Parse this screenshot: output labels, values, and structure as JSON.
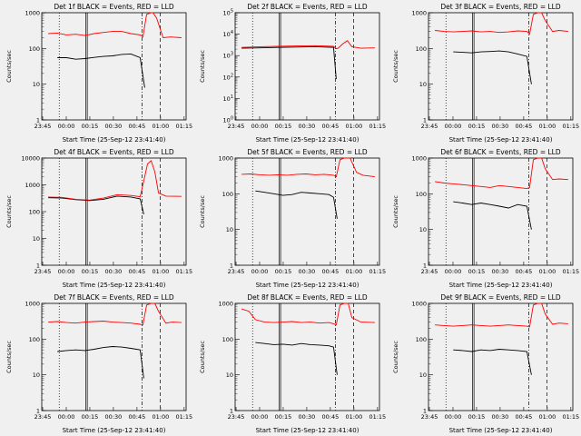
{
  "xlabel": "Start Time (25-Sep-12 23:41:40)",
  "ylabel": "Counts/sec",
  "colors": {
    "events": "#000000",
    "lld": "#ff0000",
    "axes": "#000000",
    "background": "#f0f0f0"
  },
  "chart_data": [
    {
      "type": "line",
      "title": "Det 1f BLACK = Events, RED = LLD",
      "xticks": [
        "23:45",
        "00:00",
        "00:15",
        "00:30",
        "00:45",
        "01:00",
        "01:15"
      ],
      "yscale": "log",
      "ylim": [
        1,
        1000
      ],
      "yticks": [
        "1",
        "10",
        "100",
        "1000"
      ],
      "series": [
        {
          "name": "Events",
          "color": "#000000",
          "x": [
            0.1,
            0.2,
            0.3,
            0.4,
            0.5,
            0.6,
            0.7,
            0.8,
            0.9,
            1.0,
            1.05,
            1.13
          ],
          "y": [
            55,
            55,
            50,
            52,
            56,
            60,
            62,
            68,
            70,
            55,
            8,
            null
          ]
        },
        {
          "name": "LLD",
          "color": "#ff0000",
          "x": [
            0.0,
            0.1,
            0.2,
            0.3,
            0.4,
            0.5,
            0.6,
            0.7,
            0.8,
            0.9,
            1.0,
            1.03,
            1.07,
            1.12,
            1.14,
            1.18,
            1.25,
            1.33,
            1.45
          ],
          "y": [
            260,
            270,
            240,
            250,
            230,
            260,
            280,
            300,
            300,
            260,
            240,
            210,
            900,
            1000,
            1000,
            700,
            200,
            210,
            200
          ]
        }
      ]
    },
    {
      "type": "line",
      "title": "Det 2f BLACK = Events, RED = LLD",
      "xticks": [
        "23:45",
        "00:00",
        "00:15",
        "00:30",
        "00:45",
        "01:00",
        "01:15"
      ],
      "yscale": "log",
      "ylim": [
        1,
        100000
      ],
      "yticks": [
        "10^0",
        "10^1",
        "10^2",
        "10^3",
        "10^4",
        "10^5"
      ],
      "series": [
        {
          "name": "Events",
          "color": "#000000",
          "x": [
            0.0,
            0.2,
            0.4,
            0.6,
            0.8,
            1.0,
            1.03
          ],
          "y": [
            2200,
            2300,
            2400,
            2500,
            2600,
            2400,
            80
          ]
        },
        {
          "name": "LLD",
          "color": "#ff0000",
          "x": [
            0.0,
            0.2,
            0.4,
            0.6,
            0.8,
            1.0,
            1.03,
            1.05,
            1.1,
            1.15,
            1.2,
            1.3,
            1.45
          ],
          "y": [
            2400,
            2600,
            2700,
            2800,
            2900,
            2700,
            2100,
            2200,
            3500,
            5000,
            2600,
            2200,
            2300
          ]
        }
      ]
    },
    {
      "type": "line",
      "title": "Det 3f BLACK = Events, RED = LLD",
      "xticks": [
        "23:45",
        "00:00",
        "00:15",
        "00:30",
        "00:45",
        "01:00",
        "01:15"
      ],
      "yscale": "log",
      "ylim": [
        1,
        1000
      ],
      "yticks": [
        "1",
        "10",
        "100",
        "1000"
      ],
      "series": [
        {
          "name": "Events",
          "color": "#000000",
          "x": [
            0.2,
            0.3,
            0.4,
            0.5,
            0.6,
            0.7,
            0.8,
            0.9,
            1.0,
            1.05
          ],
          "y": [
            80,
            78,
            75,
            80,
            82,
            85,
            80,
            70,
            60,
            10
          ]
        },
        {
          "name": "LLD",
          "color": "#ff0000",
          "x": [
            0.0,
            0.1,
            0.2,
            0.3,
            0.4,
            0.5,
            0.6,
            0.7,
            0.8,
            0.9,
            1.0,
            1.03,
            1.07,
            1.12,
            1.16,
            1.2,
            1.28,
            1.35,
            1.45
          ],
          "y": [
            320,
            300,
            290,
            300,
            310,
            290,
            300,
            280,
            290,
            310,
            300,
            250,
            900,
            1000,
            1000,
            600,
            300,
            320,
            300
          ]
        }
      ]
    },
    {
      "type": "line",
      "title": "Det 4f BLACK = Events, RED = LLD",
      "xticks": [
        "23:45",
        "00:00",
        "00:15",
        "00:30",
        "00:45",
        "01:00",
        "01:15"
      ],
      "yscale": "log",
      "ylim": [
        1,
        10000
      ],
      "yticks": [
        "1",
        "10",
        "100",
        "1000",
        "10000"
      ],
      "series": [
        {
          "name": "Events",
          "color": "#000000",
          "x": [
            0.0,
            0.15,
            0.3,
            0.45,
            0.6,
            0.75,
            0.9,
            1.0,
            1.04
          ],
          "y": [
            330,
            320,
            280,
            260,
            290,
            380,
            350,
            300,
            80
          ]
        },
        {
          "name": "LLD",
          "color": "#ff0000",
          "x": [
            0.0,
            0.15,
            0.3,
            0.45,
            0.6,
            0.75,
            0.9,
            1.0,
            1.03,
            1.08,
            1.12,
            1.16,
            1.2,
            1.28,
            1.45
          ],
          "y": [
            350,
            340,
            290,
            270,
            320,
            430,
            400,
            360,
            1000,
            6000,
            8000,
            3000,
            500,
            380,
            370
          ]
        }
      ]
    },
    {
      "type": "line",
      "title": "Det 5f BLACK = Events, RED = LLD",
      "xticks": [
        "23:45",
        "00:00",
        "00:15",
        "00:30",
        "00:45",
        "01:00",
        "01:15"
      ],
      "yscale": "log",
      "ylim": [
        1,
        1000
      ],
      "yticks": [
        "1",
        "10",
        "100",
        "1000"
      ],
      "series": [
        {
          "name": "Events",
          "color": "#000000",
          "x": [
            0.15,
            0.25,
            0.35,
            0.45,
            0.55,
            0.65,
            0.75,
            0.85,
            0.95,
            1.0,
            1.04
          ],
          "y": [
            120,
            110,
            100,
            90,
            95,
            110,
            105,
            100,
            95,
            80,
            20
          ]
        },
        {
          "name": "LLD",
          "color": "#ff0000",
          "x": [
            0.0,
            0.1,
            0.2,
            0.3,
            0.4,
            0.5,
            0.6,
            0.7,
            0.8,
            0.9,
            1.0,
            1.03,
            1.07,
            1.12,
            1.18,
            1.25,
            1.32,
            1.45
          ],
          "y": [
            350,
            360,
            340,
            330,
            340,
            330,
            350,
            360,
            340,
            350,
            330,
            300,
            900,
            1000,
            1000,
            400,
            330,
            300
          ]
        }
      ]
    },
    {
      "type": "line",
      "title": "Det 6f BLACK = Events, RED = LLD",
      "xticks": [
        "23:45",
        "00:00",
        "00:15",
        "00:30",
        "00:45",
        "01:00",
        "01:15"
      ],
      "yscale": "log",
      "ylim": [
        1,
        1000
      ],
      "yticks": [
        "1",
        "10",
        "100",
        "1000"
      ],
      "series": [
        {
          "name": "Events",
          "color": "#000000",
          "x": [
            0.2,
            0.3,
            0.4,
            0.5,
            0.6,
            0.7,
            0.8,
            0.9,
            1.0,
            1.05
          ],
          "y": [
            60,
            55,
            50,
            55,
            50,
            45,
            40,
            50,
            45,
            10
          ]
        },
        {
          "name": "LLD",
          "color": "#ff0000",
          "x": [
            0.0,
            0.1,
            0.2,
            0.3,
            0.4,
            0.5,
            0.6,
            0.7,
            0.8,
            0.9,
            1.0,
            1.03,
            1.07,
            1.12,
            1.16,
            1.2,
            1.28,
            1.35,
            1.45
          ],
          "y": [
            220,
            200,
            190,
            180,
            170,
            160,
            150,
            170,
            160,
            150,
            140,
            150,
            900,
            1000,
            1000,
            500,
            250,
            260,
            250
          ]
        }
      ]
    },
    {
      "type": "line",
      "title": "Det 7f BLACK = Events, RED = LLD",
      "xticks": [
        "23:45",
        "00:00",
        "00:15",
        "00:30",
        "00:45",
        "01:00",
        "01:15"
      ],
      "yscale": "log",
      "ylim": [
        1,
        1000
      ],
      "yticks": [
        "1",
        "10",
        "100",
        "1000"
      ],
      "series": [
        {
          "name": "Events",
          "color": "#000000",
          "x": [
            0.1,
            0.2,
            0.3,
            0.4,
            0.5,
            0.6,
            0.7,
            0.8,
            0.9,
            1.0,
            1.04
          ],
          "y": [
            45,
            48,
            50,
            48,
            52,
            58,
            62,
            60,
            55,
            50,
            8
          ]
        },
        {
          "name": "LLD",
          "color": "#ff0000",
          "x": [
            0.0,
            0.1,
            0.2,
            0.3,
            0.4,
            0.5,
            0.6,
            0.7,
            0.8,
            0.9,
            1.0,
            1.03,
            1.07,
            1.12,
            1.16,
            1.2,
            1.28,
            1.35,
            1.45
          ],
          "y": [
            300,
            310,
            290,
            280,
            300,
            310,
            320,
            300,
            290,
            280,
            260,
            250,
            900,
            1000,
            1000,
            600,
            280,
            300,
            290
          ]
        }
      ]
    },
    {
      "type": "line",
      "title": "Det 8f BLACK = Events, RED = LLD",
      "xticks": [
        "23:45",
        "00:00",
        "00:15",
        "00:30",
        "00:45",
        "01:00",
        "01:15"
      ],
      "yscale": "log",
      "ylim": [
        1,
        1000
      ],
      "yticks": [
        "1",
        "10",
        "100",
        "1000"
      ],
      "series": [
        {
          "name": "Events",
          "color": "#000000",
          "x": [
            0.15,
            0.25,
            0.35,
            0.45,
            0.55,
            0.65,
            0.75,
            0.85,
            0.95,
            1.0,
            1.04
          ],
          "y": [
            80,
            75,
            70,
            72,
            68,
            75,
            70,
            68,
            65,
            60,
            10
          ]
        },
        {
          "name": "LLD",
          "color": "#ff0000",
          "x": [
            0.0,
            0.08,
            0.15,
            0.25,
            0.35,
            0.45,
            0.55,
            0.65,
            0.75,
            0.85,
            0.95,
            1.0,
            1.03,
            1.07,
            1.12,
            1.16,
            1.2,
            1.3,
            1.45
          ],
          "y": [
            700,
            600,
            350,
            300,
            290,
            300,
            310,
            290,
            300,
            280,
            290,
            270,
            250,
            900,
            1000,
            1000,
            400,
            300,
            290
          ]
        }
      ]
    },
    {
      "type": "line",
      "title": "Det 9f BLACK = Events, RED = LLD",
      "xticks": [
        "23:45",
        "00:00",
        "00:15",
        "00:30",
        "00:45",
        "01:00",
        "01:15"
      ],
      "yscale": "log",
      "ylim": [
        1,
        1000
      ],
      "yticks": [
        "1",
        "10",
        "100",
        "1000"
      ],
      "series": [
        {
          "name": "Events",
          "color": "#000000",
          "x": [
            0.2,
            0.3,
            0.4,
            0.5,
            0.6,
            0.7,
            0.8,
            0.9,
            1.0,
            1.05
          ],
          "y": [
            50,
            48,
            45,
            50,
            48,
            52,
            50,
            48,
            45,
            10
          ]
        },
        {
          "name": "LLD",
          "color": "#ff0000",
          "x": [
            0.0,
            0.1,
            0.2,
            0.3,
            0.4,
            0.5,
            0.6,
            0.7,
            0.8,
            0.9,
            1.0,
            1.03,
            1.07,
            1.12,
            1.16,
            1.2,
            1.28,
            1.35,
            1.45
          ],
          "y": [
            250,
            240,
            230,
            240,
            250,
            240,
            230,
            240,
            250,
            240,
            230,
            220,
            900,
            1000,
            1000,
            500,
            260,
            280,
            270
          ]
        }
      ]
    }
  ]
}
